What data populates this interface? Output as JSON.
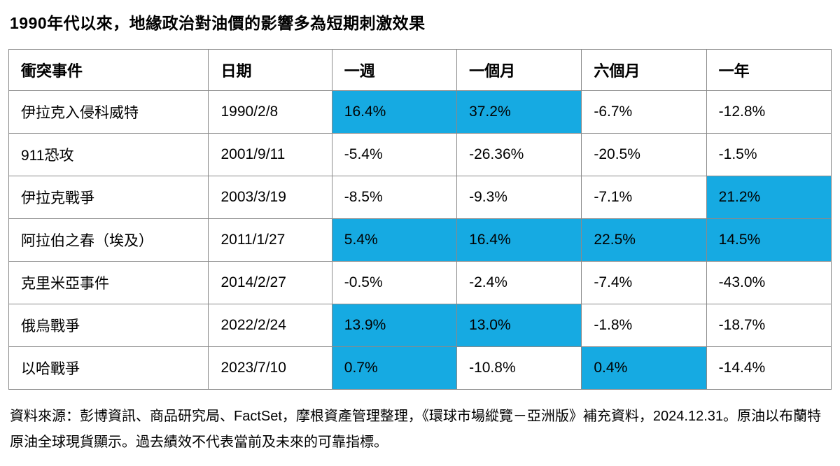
{
  "page_title": "1990年代以來，地緣政治對油價的影響多為短期刺激效果",
  "colors": {
    "highlight": "#16aae2",
    "border": "#8a8a8a",
    "text": "#000000",
    "background": "#ffffff"
  },
  "table": {
    "columns": [
      "衝突事件",
      "日期",
      "一週",
      "一個月",
      "六個月",
      "一年"
    ],
    "rows": [
      {
        "event": "伊拉克入侵科威特",
        "date": "1990/2/8",
        "values": [
          "16.4%",
          "37.2%",
          "-6.7%",
          "-12.8%"
        ],
        "highlighted": [
          true,
          true,
          false,
          false
        ]
      },
      {
        "event": "911恐攻",
        "date": "2001/9/11",
        "values": [
          "-5.4%",
          "-26.36%",
          "-20.5%",
          "-1.5%"
        ],
        "highlighted": [
          false,
          false,
          false,
          false
        ]
      },
      {
        "event": "伊拉克戰爭",
        "date": "2003/3/19",
        "values": [
          "-8.5%",
          "-9.3%",
          "-7.1%",
          "21.2%"
        ],
        "highlighted": [
          false,
          false,
          false,
          true
        ]
      },
      {
        "event": "阿拉伯之春（埃及）",
        "date": "2011/1/27",
        "values": [
          "5.4%",
          "16.4%",
          "22.5%",
          "14.5%"
        ],
        "highlighted": [
          true,
          true,
          true,
          true
        ]
      },
      {
        "event": "克里米亞事件",
        "date": "2014/2/27",
        "values": [
          "-0.5%",
          "-2.4%",
          "-7.4%",
          "-43.0%"
        ],
        "highlighted": [
          false,
          false,
          false,
          false
        ]
      },
      {
        "event": "俄烏戰爭",
        "date": "2022/2/24",
        "values": [
          "13.9%",
          "13.0%",
          "-1.8%",
          "-18.7%"
        ],
        "highlighted": [
          true,
          true,
          false,
          false
        ]
      },
      {
        "event": "以哈戰爭",
        "date": "2023/7/10",
        "values": [
          "0.7%",
          "-10.8%",
          "0.4%",
          "-14.4%"
        ],
        "highlighted": [
          true,
          false,
          true,
          false
        ]
      }
    ]
  },
  "footer": {
    "text": "資料來源：彭博資訊、商品研究局、FactSet，摩根資產管理整理，《環球市場縱覽－亞洲版》補充資料，2024.12.31。原油以布蘭特原油全球現貨顯示。過去績效不代表當前及未來的可靠指標。"
  },
  "chart_data": {
    "type": "table",
    "title": "1990年代以來，地緣政治對油價的影響多為短期刺激效果",
    "columns": [
      "衝突事件",
      "日期",
      "一週",
      "一個月",
      "六個月",
      "一年"
    ],
    "rows": [
      [
        "伊拉克入侵科威特",
        "1990/2/8",
        16.4,
        37.2,
        -6.7,
        -12.8
      ],
      [
        "911恐攻",
        "2001/9/11",
        -5.4,
        -26.36,
        -20.5,
        -1.5
      ],
      [
        "伊拉克戰爭",
        "2003/3/19",
        -8.5,
        -9.3,
        -7.1,
        21.2
      ],
      [
        "阿拉伯之春（埃及）",
        "2011/1/27",
        5.4,
        16.4,
        22.5,
        14.5
      ],
      [
        "克里米亞事件",
        "2014/2/27",
        -0.5,
        -2.4,
        -7.4,
        -43.0
      ],
      [
        "俄烏戰爭",
        "2022/2/24",
        13.9,
        13.0,
        -1.8,
        -18.7
      ],
      [
        "以哈戰爭",
        "2023/7/10",
        0.7,
        -10.8,
        0.4,
        -14.4
      ]
    ],
    "value_unit": "%",
    "highlighted_cells_color": "#16aae2",
    "highlighted_cells": "positive short-term spikes: row1 cols 一週/一個月; row3 col 一年; row4 all; row6 cols 一週/一個月; row7 cols 一週/六個月",
    "source_note": "資料來源：彭博資訊、商品研究局、FactSet，摩根資產管理整理，《環球市場縱覽－亞洲版》補充資料，2024.12.31。原油以布蘭特原油全球現貨顯示。過去績效不代表當前及未來的可靠指標。"
  }
}
